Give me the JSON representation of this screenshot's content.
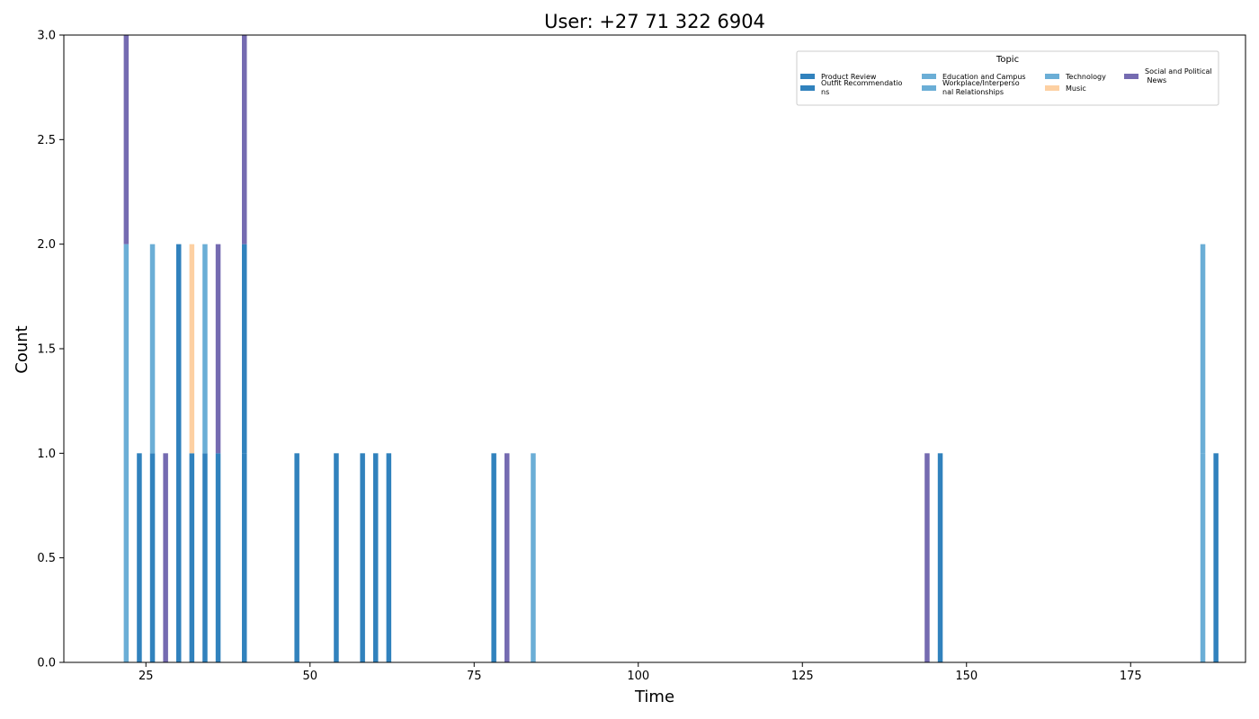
{
  "chart_data": {
    "type": "bar",
    "stacked": true,
    "title": "User: +27 71 322 6904",
    "xlabel": "Time",
    "ylabel": "Count",
    "xlim": [
      12.5,
      192.5
    ],
    "ylim": [
      0,
      3
    ],
    "xticks": [
      25,
      50,
      75,
      100,
      125,
      150,
      175
    ],
    "yticks": [
      0.0,
      0.5,
      1.0,
      1.5,
      2.0,
      2.5,
      3.0
    ],
    "legend_title": "Topic",
    "legend_position": "top-right",
    "series": [
      {
        "name": "Product Review",
        "color": "#3182bd",
        "points": [
          [
            40,
            1
          ]
        ]
      },
      {
        "name": "Outfit Recommendations",
        "color": "#3182bd",
        "points": [
          [
            24,
            1
          ],
          [
            26,
            1
          ],
          [
            30,
            2
          ],
          [
            32,
            1
          ],
          [
            34,
            1
          ],
          [
            36,
            1
          ],
          [
            40,
            1
          ],
          [
            48,
            1
          ],
          [
            54,
            1
          ],
          [
            58,
            1
          ],
          [
            60,
            1
          ],
          [
            62,
            1
          ],
          [
            78,
            1
          ],
          [
            146,
            1
          ],
          [
            188,
            1
          ]
        ]
      },
      {
        "name": "Education and Campus",
        "color": "#6baed6",
        "points": [
          [
            186,
            1
          ]
        ]
      },
      {
        "name": "Workplace/Interpersonal Relationships",
        "color": "#6baed6",
        "points": [
          [
            22,
            2
          ],
          [
            26,
            1
          ],
          [
            34,
            1
          ],
          [
            84,
            1
          ],
          [
            186,
            1
          ]
        ]
      },
      {
        "name": "Technology",
        "color": "#6baed6",
        "points": []
      },
      {
        "name": "Music",
        "color": "#fdd0a2",
        "points": [
          [
            32,
            1
          ]
        ]
      },
      {
        "name": "Social and Political News",
        "color": "#756bb1",
        "points": [
          [
            22,
            1
          ],
          [
            28,
            1
          ],
          [
            36,
            1
          ],
          [
            40,
            1
          ],
          [
            80,
            1
          ],
          [
            144,
            1
          ]
        ]
      }
    ],
    "legend_labels": [
      "Product Review",
      "Outfit Recommendatio\nns",
      "Education and Campus",
      "Workplace/Interperso\nnal Relationships",
      "Technology",
      "Music",
      "Social and Political\n News"
    ]
  }
}
